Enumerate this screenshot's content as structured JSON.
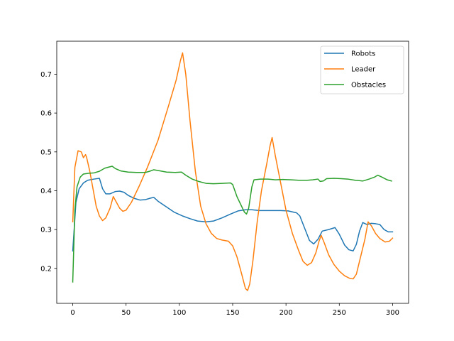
{
  "chart_data": {
    "type": "line",
    "title": "",
    "xlabel": "",
    "ylabel": "",
    "xlim": [
      -15,
      315
    ],
    "ylim": [
      0.11,
      0.785
    ],
    "xticks": [
      0,
      50,
      100,
      150,
      200,
      250,
      300
    ],
    "yticks": [
      0.2,
      0.3,
      0.4,
      0.5,
      0.6,
      0.7
    ],
    "xtick_labels": [
      "0",
      "50",
      "100",
      "150",
      "200",
      "250",
      "300"
    ],
    "ytick_labels": [
      "0.2",
      "0.3",
      "0.4",
      "0.5",
      "0.6",
      "0.7"
    ],
    "grid": false,
    "legend_position": "top-right",
    "series": [
      {
        "name": "Robots",
        "color": "#1f77b4",
        "points": [
          [
            0,
            0.245
          ],
          [
            3,
            0.37
          ],
          [
            6,
            0.405
          ],
          [
            10,
            0.42
          ],
          [
            14,
            0.427
          ],
          [
            20,
            0.43
          ],
          [
            25,
            0.432
          ],
          [
            28,
            0.405
          ],
          [
            31,
            0.392
          ],
          [
            35,
            0.392
          ],
          [
            40,
            0.398
          ],
          [
            44,
            0.399
          ],
          [
            48,
            0.396
          ],
          [
            52,
            0.388
          ],
          [
            58,
            0.38
          ],
          [
            63,
            0.376
          ],
          [
            68,
            0.377
          ],
          [
            73,
            0.381
          ],
          [
            76,
            0.383
          ],
          [
            80,
            0.373
          ],
          [
            88,
            0.358
          ],
          [
            95,
            0.345
          ],
          [
            103,
            0.335
          ],
          [
            110,
            0.328
          ],
          [
            117,
            0.322
          ],
          [
            125,
            0.32
          ],
          [
            132,
            0.322
          ],
          [
            140,
            0.33
          ],
          [
            148,
            0.34
          ],
          [
            155,
            0.348
          ],
          [
            162,
            0.351
          ],
          [
            168,
            0.351
          ],
          [
            175,
            0.349
          ],
          [
            185,
            0.349
          ],
          [
            195,
            0.349
          ],
          [
            202,
            0.348
          ],
          [
            210,
            0.343
          ],
          [
            213,
            0.335
          ],
          [
            218,
            0.3
          ],
          [
            222,
            0.272
          ],
          [
            226,
            0.263
          ],
          [
            230,
            0.275
          ],
          [
            234,
            0.296
          ],
          [
            240,
            0.3
          ],
          [
            246,
            0.305
          ],
          [
            250,
            0.288
          ],
          [
            255,
            0.26
          ],
          [
            259,
            0.248
          ],
          [
            263,
            0.245
          ],
          [
            266,
            0.262
          ],
          [
            269,
            0.296
          ],
          [
            272,
            0.318
          ],
          [
            276,
            0.313
          ],
          [
            280,
            0.316
          ],
          [
            284,
            0.315
          ],
          [
            288,
            0.313
          ],
          [
            292,
            0.3
          ],
          [
            296,
            0.294
          ],
          [
            300,
            0.294
          ]
        ]
      },
      {
        "name": "Leader",
        "color": "#ff7f0e",
        "points": [
          [
            0,
            0.32
          ],
          [
            2,
            0.46
          ],
          [
            5,
            0.503
          ],
          [
            8,
            0.5
          ],
          [
            10,
            0.485
          ],
          [
            12,
            0.493
          ],
          [
            13,
            0.486
          ],
          [
            16,
            0.45
          ],
          [
            19,
            0.405
          ],
          [
            22,
            0.36
          ],
          [
            25,
            0.335
          ],
          [
            28,
            0.323
          ],
          [
            31,
            0.33
          ],
          [
            35,
            0.355
          ],
          [
            38,
            0.385
          ],
          [
            41,
            0.37
          ],
          [
            44,
            0.355
          ],
          [
            47,
            0.347
          ],
          [
            50,
            0.35
          ],
          [
            55,
            0.37
          ],
          [
            62,
            0.41
          ],
          [
            70,
            0.46
          ],
          [
            80,
            0.53
          ],
          [
            90,
            0.62
          ],
          [
            97,
            0.685
          ],
          [
            101,
            0.735
          ],
          [
            103,
            0.755
          ],
          [
            106,
            0.7
          ],
          [
            110,
            0.58
          ],
          [
            115,
            0.45
          ],
          [
            120,
            0.36
          ],
          [
            125,
            0.315
          ],
          [
            130,
            0.29
          ],
          [
            135,
            0.277
          ],
          [
            140,
            0.273
          ],
          [
            146,
            0.27
          ],
          [
            150,
            0.258
          ],
          [
            154,
            0.23
          ],
          [
            158,
            0.19
          ],
          [
            162,
            0.148
          ],
          [
            164,
            0.143
          ],
          [
            166,
            0.16
          ],
          [
            169,
            0.22
          ],
          [
            173,
            0.32
          ],
          [
            177,
            0.4
          ],
          [
            182,
            0.47
          ],
          [
            185,
            0.515
          ],
          [
            187,
            0.537
          ],
          [
            190,
            0.49
          ],
          [
            195,
            0.42
          ],
          [
            200,
            0.35
          ],
          [
            206,
            0.29
          ],
          [
            212,
            0.245
          ],
          [
            216,
            0.218
          ],
          [
            220,
            0.208
          ],
          [
            224,
            0.215
          ],
          [
            228,
            0.24
          ],
          [
            231,
            0.27
          ],
          [
            233,
            0.285
          ],
          [
            236,
            0.265
          ],
          [
            240,
            0.235
          ],
          [
            245,
            0.21
          ],
          [
            250,
            0.193
          ],
          [
            255,
            0.181
          ],
          [
            260,
            0.174
          ],
          [
            263,
            0.173
          ],
          [
            266,
            0.185
          ],
          [
            270,
            0.23
          ],
          [
            274,
            0.275
          ],
          [
            277,
            0.32
          ],
          [
            280,
            0.31
          ],
          [
            284,
            0.29
          ],
          [
            288,
            0.277
          ],
          [
            293,
            0.268
          ],
          [
            297,
            0.27
          ],
          [
            300,
            0.278
          ]
        ]
      },
      {
        "name": "Obstacles",
        "color": "#2ca02c",
        "points": [
          [
            0,
            0.165
          ],
          [
            2,
            0.35
          ],
          [
            4,
            0.41
          ],
          [
            7,
            0.435
          ],
          [
            10,
            0.443
          ],
          [
            15,
            0.445
          ],
          [
            20,
            0.446
          ],
          [
            25,
            0.45
          ],
          [
            30,
            0.458
          ],
          [
            34,
            0.461
          ],
          [
            37,
            0.463
          ],
          [
            40,
            0.457
          ],
          [
            45,
            0.451
          ],
          [
            52,
            0.448
          ],
          [
            60,
            0.447
          ],
          [
            68,
            0.447
          ],
          [
            72,
            0.45
          ],
          [
            76,
            0.454
          ],
          [
            80,
            0.452
          ],
          [
            88,
            0.448
          ],
          [
            96,
            0.447
          ],
          [
            102,
            0.448
          ],
          [
            106,
            0.44
          ],
          [
            112,
            0.43
          ],
          [
            118,
            0.424
          ],
          [
            125,
            0.419
          ],
          [
            132,
            0.418
          ],
          [
            140,
            0.419
          ],
          [
            148,
            0.42
          ],
          [
            150,
            0.416
          ],
          [
            154,
            0.385
          ],
          [
            158,
            0.362
          ],
          [
            161,
            0.345
          ],
          [
            163,
            0.34
          ],
          [
            165,
            0.355
          ],
          [
            168,
            0.41
          ],
          [
            170,
            0.428
          ],
          [
            176,
            0.43
          ],
          [
            183,
            0.43
          ],
          [
            190,
            0.428
          ],
          [
            197,
            0.429
          ],
          [
            205,
            0.428
          ],
          [
            212,
            0.427
          ],
          [
            220,
            0.427
          ],
          [
            225,
            0.428
          ],
          [
            230,
            0.43
          ],
          [
            232,
            0.424
          ],
          [
            235,
            0.425
          ],
          [
            238,
            0.431
          ],
          [
            245,
            0.432
          ],
          [
            252,
            0.431
          ],
          [
            258,
            0.43
          ],
          [
            265,
            0.427
          ],
          [
            272,
            0.425
          ],
          [
            278,
            0.43
          ],
          [
            283,
            0.435
          ],
          [
            286,
            0.44
          ],
          [
            290,
            0.435
          ],
          [
            295,
            0.428
          ],
          [
            299,
            0.425
          ]
        ]
      }
    ]
  }
}
